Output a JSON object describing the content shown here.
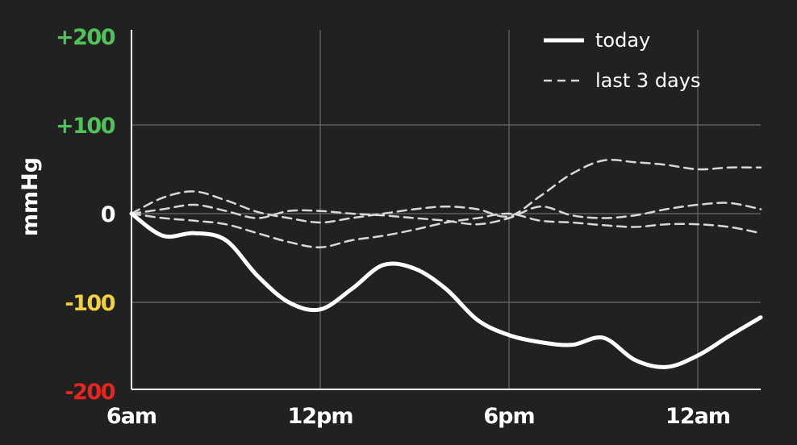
{
  "chart_data": {
    "type": "line",
    "xlabel": "",
    "ylabel": "mmHg",
    "x_ticks": [
      {
        "label": "6am",
        "hour": 6
      },
      {
        "label": "12pm",
        "hour": 12
      },
      {
        "label": "6pm",
        "hour": 18
      },
      {
        "label": "12am",
        "hour": 24
      }
    ],
    "y_ticks": [
      {
        "label": "+200",
        "value": 200,
        "color": "#4fc35a"
      },
      {
        "label": "+100",
        "value": 100,
        "color": "#4fc35a"
      },
      {
        "label": "0",
        "value": 0,
        "color": "#ffffff"
      },
      {
        "label": "-100",
        "value": -100,
        "color": "#f2d13c"
      },
      {
        "label": "-200",
        "value": -200,
        "color": "#e8241f"
      }
    ],
    "xlim": [
      6,
      26
    ],
    "ylim": [
      -200,
      200
    ],
    "grid": true,
    "legend": {
      "position": "top-right",
      "entries": [
        {
          "label": "today",
          "style": "solid"
        },
        {
          "label": "last 3 days",
          "style": "dashed"
        }
      ]
    },
    "series": [
      {
        "name": "today",
        "style": "solid",
        "x": [
          6,
          7,
          8,
          9,
          10,
          11,
          12,
          13,
          14,
          15,
          16,
          17,
          18,
          19,
          20,
          21,
          22,
          23,
          24,
          25,
          26
        ],
        "y": [
          0,
          -25,
          -22,
          -30,
          -70,
          -100,
          -108,
          -85,
          -58,
          -62,
          -85,
          -120,
          -137,
          -145,
          -148,
          -140,
          -165,
          -173,
          -160,
          -138,
          -117
        ]
      },
      {
        "series_group": "last 3 days",
        "style": "dashed",
        "x": [
          6,
          7,
          8,
          9,
          10,
          11,
          12,
          13,
          14,
          15,
          16,
          17,
          18,
          19,
          20,
          21,
          22,
          23,
          24,
          25,
          26
        ],
        "y": [
          0,
          18,
          25,
          15,
          2,
          -5,
          -10,
          -5,
          0,
          5,
          8,
          5,
          -3,
          20,
          45,
          60,
          58,
          55,
          50,
          52,
          52
        ]
      },
      {
        "series_group": "last 3 days",
        "style": "dashed",
        "x": [
          6,
          7,
          8,
          9,
          10,
          11,
          12,
          13,
          14,
          15,
          16,
          17,
          18,
          19,
          20,
          21,
          22,
          23,
          24,
          25,
          26
        ],
        "y": [
          0,
          5,
          10,
          3,
          -5,
          3,
          3,
          0,
          -2,
          -5,
          -8,
          -12,
          -5,
          8,
          -2,
          -5,
          -2,
          5,
          10,
          12,
          5
        ]
      },
      {
        "series_group": "last 3 days",
        "style": "dashed",
        "x": [
          6,
          7,
          8,
          9,
          10,
          11,
          12,
          13,
          14,
          15,
          16,
          17,
          18,
          19,
          20,
          21,
          22,
          23,
          24,
          25,
          26
        ],
        "y": [
          0,
          -5,
          -8,
          -12,
          -22,
          -32,
          -38,
          -30,
          -25,
          -18,
          -10,
          -5,
          0,
          -8,
          -10,
          -13,
          -15,
          -12,
          -12,
          -15,
          -22
        ]
      }
    ]
  }
}
